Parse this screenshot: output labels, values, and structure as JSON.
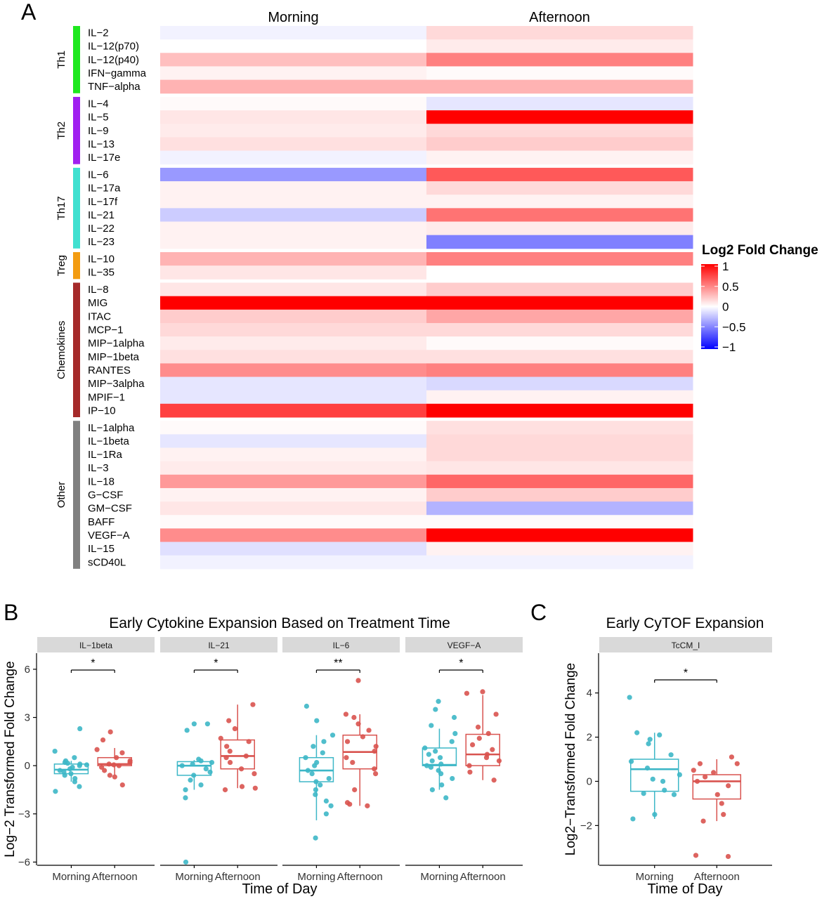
{
  "panel_labels": {
    "a": "A",
    "b": "B",
    "c": "C"
  },
  "chart_data": [
    {
      "type": "heatmap",
      "panel": "A",
      "columns": [
        "Morning",
        "Afternoon"
      ],
      "legend": {
        "title": "Log2 Fold Change",
        "ticks": [
          "1",
          "0.5",
          "0",
          "−0.5",
          "−1"
        ],
        "range": [
          -1,
          1
        ],
        "colors": {
          "low": "#0000ff",
          "mid": "#ffffff",
          "high": "#ff0000"
        }
      },
      "groups": [
        {
          "name": "Th1",
          "color": "#1ee81e",
          "rows": [
            {
              "label": "IL−2",
              "values": [
                -0.05,
                0.15
              ]
            },
            {
              "label": "IL−12(p70)",
              "values": [
                0.0,
                0.08
              ]
            },
            {
              "label": "IL−12(p40)",
              "values": [
                0.25,
                0.5
              ]
            },
            {
              "label": "IFN−gamma",
              "values": [
                0.05,
                0.02
              ]
            },
            {
              "label": "TNF−alpha",
              "values": [
                0.3,
                0.3
              ]
            }
          ]
        },
        {
          "name": "Th2",
          "color": "#a020f0",
          "rows": [
            {
              "label": "IL−4",
              "values": [
                0.02,
                -0.1
              ]
            },
            {
              "label": "IL−5",
              "values": [
                0.1,
                1.0
              ]
            },
            {
              "label": "IL−9",
              "values": [
                0.08,
                0.15
              ]
            },
            {
              "label": "IL−13",
              "values": [
                0.12,
                0.2
              ]
            },
            {
              "label": "IL−17e",
              "values": [
                -0.05,
                0.05
              ]
            }
          ]
        },
        {
          "name": "Th17",
          "color": "#40e0d0",
          "rows": [
            {
              "label": "IL−6",
              "values": [
                -0.4,
                0.65
              ]
            },
            {
              "label": "IL−17a",
              "values": [
                0.05,
                0.15
              ]
            },
            {
              "label": "IL−17f",
              "values": [
                0.05,
                0.05
              ]
            },
            {
              "label": "IL−21",
              "values": [
                -0.2,
                0.55
              ]
            },
            {
              "label": "IL−22",
              "values": [
                0.05,
                0.08
              ]
            },
            {
              "label": "IL−23",
              "values": [
                0.05,
                -0.5
              ]
            }
          ]
        },
        {
          "name": "Treg",
          "color": "#f39c12",
          "rows": [
            {
              "label": "IL−10",
              "values": [
                0.3,
                0.5
              ]
            },
            {
              "label": "IL−35",
              "values": [
                0.1,
                0.0
              ]
            }
          ]
        },
        {
          "name": "Chemokines",
          "color": "#a52a2a",
          "rows": [
            {
              "label": "IL−8",
              "values": [
                0.1,
                0.2
              ]
            },
            {
              "label": "MIG",
              "values": [
                1.0,
                1.0
              ]
            },
            {
              "label": "ITAC",
              "values": [
                0.2,
                0.35
              ]
            },
            {
              "label": "MCP−1",
              "values": [
                0.15,
                0.15
              ]
            },
            {
              "label": "MIP−1alpha",
              "values": [
                0.08,
                0.02
              ]
            },
            {
              "label": "MIP−1beta",
              "values": [
                0.12,
                0.12
              ]
            },
            {
              "label": "RANTES",
              "values": [
                0.45,
                0.5
              ]
            },
            {
              "label": "MIP−3alpha",
              "values": [
                -0.1,
                -0.15
              ]
            },
            {
              "label": "MPIF−1",
              "values": [
                -0.1,
                0.05
              ]
            },
            {
              "label": "IP−10",
              "values": [
                0.75,
                1.0
              ]
            }
          ]
        },
        {
          "name": "Other",
          "color": "#808080",
          "rows": [
            {
              "label": "IL−1alpha",
              "values": [
                0.02,
                0.12
              ]
            },
            {
              "label": "IL−1beta",
              "values": [
                -0.1,
                0.15
              ]
            },
            {
              "label": "IL−1Ra",
              "values": [
                0.05,
                0.15
              ]
            },
            {
              "label": "IL−3",
              "values": [
                0.08,
                0.1
              ]
            },
            {
              "label": "IL−18",
              "values": [
                0.4,
                0.6
              ]
            },
            {
              "label": "G−CSF",
              "values": [
                0.05,
                0.2
              ]
            },
            {
              "label": "GM−CSF",
              "values": [
                0.1,
                -0.3
              ]
            },
            {
              "label": "BAFF",
              "values": [
                0.02,
                0.02
              ]
            },
            {
              "label": "VEGF−A",
              "values": [
                0.45,
                1.0
              ]
            },
            {
              "label": "IL−15",
              "values": [
                -0.12,
                0.05
              ]
            },
            {
              "label": "sCD40L",
              "values": [
                -0.05,
                -0.05
              ]
            }
          ]
        }
      ]
    },
    {
      "type": "box",
      "panel": "B",
      "title": "Early Cytokine Expansion Based on Treatment Time",
      "xlabel": "Time of Day",
      "ylabel": "Log−2 Transformed Fold Change",
      "ylim": [
        -6.2,
        7.0
      ],
      "yticks": [
        -6,
        -3,
        0,
        3,
        6
      ],
      "categories": [
        "Morning",
        "Afternoon"
      ],
      "colors": {
        "Morning": "#3db7c7",
        "Afternoon": "#d9534f"
      },
      "facets": [
        {
          "label": "IL−1beta",
          "sig": "*",
          "boxes": [
            {
              "q1": -0.5,
              "median": -0.25,
              "q3": 0.1,
              "lo": -1.0,
              "hi": 0.3
            },
            {
              "q1": 0.0,
              "median": 0.1,
              "q3": 0.5,
              "lo": -0.6,
              "hi": 1.1
            }
          ],
          "points": [
            [
              -1.6,
              -1.3,
              -1.0,
              -0.8,
              -0.6,
              -0.5,
              -0.4,
              -0.3,
              -0.2,
              -0.1,
              0.0,
              0.05,
              0.1,
              0.15,
              0.2,
              0.3,
              0.5,
              0.9,
              2.3
            ],
            [
              -1.2,
              -0.7,
              -0.6,
              -0.3,
              -0.1,
              0.0,
              0.05,
              0.1,
              0.2,
              0.3,
              0.5,
              0.8,
              1.0,
              1.6,
              2.1
            ]
          ]
        },
        {
          "label": "IL−21",
          "sig": "*",
          "boxes": [
            {
              "q1": -0.6,
              "median": 0.0,
              "q3": 0.25,
              "lo": -1.5,
              "hi": 0.35
            },
            {
              "q1": -0.2,
              "median": 0.6,
              "q3": 1.6,
              "lo": -1.4,
              "hi": 3.8
            }
          ],
          "points": [
            [
              -6.0,
              -2.0,
              -1.5,
              -1.2,
              -0.9,
              -0.6,
              -0.4,
              -0.2,
              0.0,
              0.1,
              0.2,
              0.3,
              0.4,
              2.2,
              2.6,
              2.6
            ],
            [
              -1.5,
              -1.4,
              -1.3,
              -0.5,
              -0.2,
              0.2,
              0.5,
              0.6,
              0.9,
              1.2,
              1.5,
              1.7,
              2.3,
              2.8,
              3.8
            ]
          ]
        },
        {
          "label": "IL−6",
          "sig": "**",
          "boxes": [
            {
              "q1": -1.0,
              "median": -0.3,
              "q3": 0.5,
              "lo": -3.4,
              "hi": 1.9
            },
            {
              "q1": -0.2,
              "median": 0.85,
              "q3": 1.9,
              "lo": -2.5,
              "hi": 3.2
            }
          ],
          "points": [
            [
              -4.5,
              -3.0,
              -2.5,
              -2.2,
              -1.8,
              -1.5,
              -1.2,
              -1.0,
              -0.8,
              -0.5,
              -0.3,
              0.0,
              0.2,
              0.5,
              0.8,
              1.2,
              1.5,
              1.9,
              2.8,
              3.7
            ],
            [
              -2.5,
              -2.4,
              -2.3,
              -1.5,
              -0.5,
              -0.2,
              0.2,
              0.5,
              0.9,
              1.2,
              1.5,
              1.8,
              2.2,
              2.6,
              3.0,
              3.2,
              5.3
            ]
          ]
        },
        {
          "label": "VEGF−A",
          "sig": "*",
          "boxes": [
            {
              "q1": 0.0,
              "median": 0.05,
              "q3": 1.1,
              "lo": -1.5,
              "hi": 2.3
            },
            {
              "q1": 0.0,
              "median": 0.7,
              "q3": 1.95,
              "lo": -0.9,
              "hi": 4.4
            }
          ],
          "points": [
            [
              -2.0,
              -1.5,
              -1.2,
              -0.8,
              -0.5,
              -0.3,
              -0.1,
              0.0,
              0.1,
              0.3,
              0.5,
              0.7,
              0.9,
              1.1,
              1.5,
              2.0,
              2.5,
              3.0,
              3.5,
              4.0
            ],
            [
              -0.9,
              -0.4,
              0.0,
              0.3,
              0.5,
              0.7,
              1.0,
              1.3,
              1.7,
              2.0,
              2.4,
              3.2,
              4.5,
              4.6
            ]
          ]
        }
      ]
    },
    {
      "type": "box",
      "panel": "C",
      "title": "Early CyTOF Expansion",
      "xlabel": "Time of Day",
      "ylabel": "Log2−Transformed Fold Change",
      "ylim": [
        -3.8,
        5.8
      ],
      "yticks": [
        -2,
        0,
        2,
        4
      ],
      "categories": [
        "Morning",
        "Afternoon"
      ],
      "colors": {
        "Morning": "#3db7c7",
        "Afternoon": "#d9534f"
      },
      "facets": [
        {
          "label": "TcCM_I",
          "sig": "*",
          "boxes": [
            {
              "q1": -0.45,
              "median": 0.55,
              "q3": 1.0,
              "lo": -1.7,
              "hi": 2.2
            },
            {
              "q1": -0.8,
              "median": 0.0,
              "q3": 0.3,
              "lo": -1.8,
              "hi": 1.0
            }
          ],
          "points": [
            [
              -1.7,
              -1.5,
              -0.6,
              -0.55,
              -0.4,
              0.0,
              0.1,
              0.3,
              0.6,
              0.9,
              1.2,
              1.7,
              1.9,
              2.1,
              2.2,
              3.8
            ],
            [
              -3.4,
              -3.35,
              -1.8,
              -1.5,
              -1.0,
              -0.6,
              -0.2,
              0.0,
              0.2,
              0.4,
              0.5,
              0.8,
              0.8,
              1.1
            ]
          ]
        }
      ]
    }
  ]
}
